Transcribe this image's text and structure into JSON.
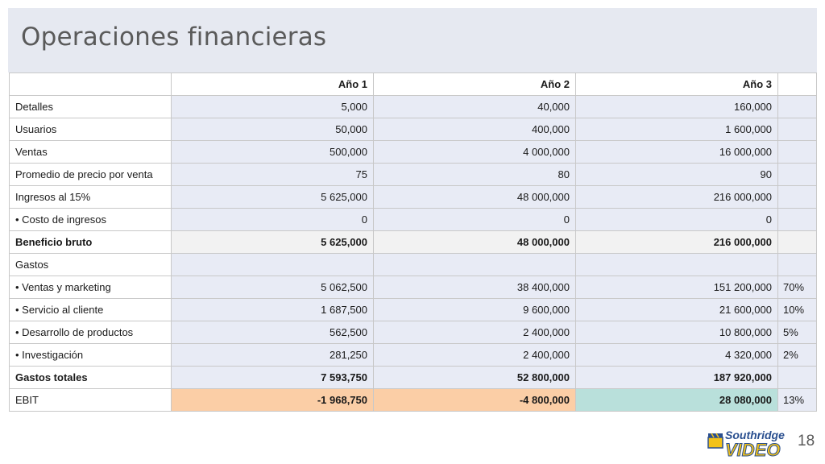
{
  "slide": {
    "title": "Operaciones financieras",
    "page_number": "18",
    "logo": {
      "line1": "Southridge",
      "line2": "VIDEO"
    }
  },
  "table": {
    "headers": [
      "",
      "Año 1",
      "Año 2",
      "Año 3",
      ""
    ],
    "rows": [
      {
        "label": "Detalles",
        "y1": "5,000",
        "y2": "40,000",
        "y3": "160,000",
        "pct": ""
      },
      {
        "label": "Usuarios",
        "y1": "50,000",
        "y2": "400,000",
        "y3": "1 600,000",
        "pct": ""
      },
      {
        "label": "Ventas",
        "y1": "500,000",
        "y2": "4 000,000",
        "y3": "16 000,000",
        "pct": ""
      },
      {
        "label": "Promedio de precio por venta",
        "y1": "75",
        "y2": "80",
        "y3": "90",
        "pct": ""
      },
      {
        "label": "Ingresos al 15%",
        "y1": "5 625,000",
        "y2": "48 000,000",
        "y3": "216 000,000",
        "pct": ""
      },
      {
        "label": "•  Costo de ingresos",
        "y1": "0",
        "y2": "0",
        "y3": "0",
        "pct": ""
      },
      {
        "label": "Beneficio bruto",
        "y1": "5 625,000",
        "y2": "48 000,000",
        "y3": "216 000,000",
        "pct": ""
      },
      {
        "label": "Gastos",
        "y1": "",
        "y2": "",
        "y3": "",
        "pct": ""
      },
      {
        "label": "•  Ventas y marketing",
        "y1": "5 062,500",
        "y2": "38 400,000",
        "y3": "151 200,000",
        "pct": "70%"
      },
      {
        "label": "•  Servicio al cliente",
        "y1": "1 687,500",
        "y2": "9 600,000",
        "y3": "21 600,000",
        "pct": "10%"
      },
      {
        "label": "•  Desarrollo de productos",
        "y1": "562,500",
        "y2": "2 400,000",
        "y3": "10 800,000",
        "pct": "5%"
      },
      {
        "label": "•  Investigación",
        "y1": "281,250",
        "y2": "2 400,000",
        "y3": "4 320,000",
        "pct": "2%"
      },
      {
        "label": "Gastos totales",
        "y1": "7 593,750",
        "y2": "52 800,000",
        "y3": "187 920,000",
        "pct": ""
      },
      {
        "label": "EBIT",
        "y1": "-1 968,750",
        "y2": "-4 800,000",
        "y3": "28 080,000",
        "pct": "13%"
      }
    ]
  },
  "colors": {
    "header_band": "#e6e9f1",
    "cell_fill": "#e8ebf5",
    "negative_fill": "#fbcea6",
    "positive_fill": "#b9e0db"
  }
}
